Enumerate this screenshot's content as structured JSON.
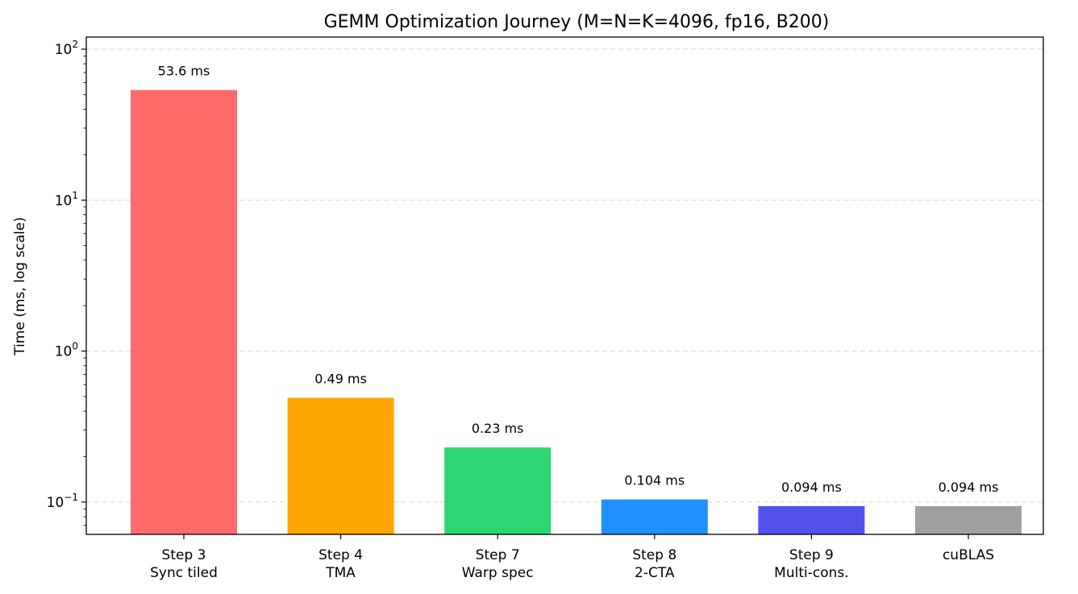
{
  "chart_data": {
    "type": "bar",
    "title": "GEMM Optimization Journey (M=N=K=4096, fp16, B200)",
    "xlabel": "",
    "ylabel": "Time (ms, log scale)",
    "yscale": "log",
    "ylim": [
      0.06,
      125
    ],
    "grid": "y-major",
    "categories": [
      [
        "Step 3",
        "Sync tiled"
      ],
      [
        "Step 4",
        "TMA"
      ],
      [
        "Step 7",
        "Warp spec"
      ],
      [
        "Step 8",
        "2-CTA"
      ],
      [
        "Step 9",
        "Multi-cons."
      ],
      [
        "cuBLAS"
      ]
    ],
    "values": [
      53.6,
      0.49,
      0.23,
      0.104,
      0.094,
      0.094
    ],
    "data_labels": [
      "53.6 ms",
      "0.49 ms",
      "0.23 ms",
      "0.104 ms",
      "0.094 ms",
      "0.094 ms"
    ],
    "colors": [
      "#ff6b6b",
      "#ffa500",
      "#2ed573",
      "#1e90ff",
      "#5352ed",
      "#a0a0a0"
    ],
    "y_ticks": [
      {
        "value": 0.1,
        "base": "10",
        "exp": "−1"
      },
      {
        "value": 1,
        "base": "10",
        "exp": "0"
      },
      {
        "value": 10,
        "base": "10",
        "exp": "1"
      },
      {
        "value": 100,
        "base": "10",
        "exp": "2"
      }
    ]
  }
}
